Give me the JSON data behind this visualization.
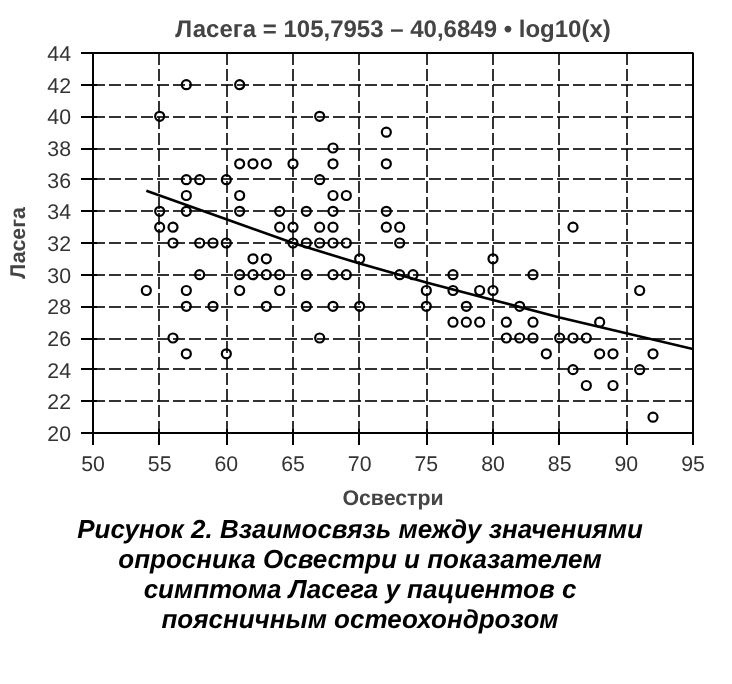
{
  "chart_data": {
    "type": "scatter",
    "title": "Ласега = 105,7953 – 40,6849 • log10(x)",
    "xlabel": "Освестри",
    "ylabel": "Ласега",
    "xlim": [
      50,
      95
    ],
    "xticks": [
      50,
      55,
      60,
      65,
      70,
      75,
      80,
      85,
      90,
      95
    ],
    "ylim": [
      20,
      44
    ],
    "yticks": [
      20,
      22,
      24,
      26,
      28,
      30,
      32,
      34,
      36,
      38,
      40,
      42,
      44
    ],
    "grid": true,
    "marker": "circle",
    "series": [
      {
        "color": "#000000",
        "x": [
          57,
          61,
          55,
          67,
          72,
          68,
          61,
          62,
          63,
          65,
          68,
          72,
          57,
          58,
          60,
          67,
          57,
          61,
          68,
          69,
          55,
          57,
          61,
          64,
          66,
          68,
          72,
          55,
          56,
          64,
          65,
          67,
          68,
          72,
          73,
          86,
          56,
          58,
          59,
          60,
          65,
          66,
          67,
          68,
          69,
          73,
          62,
          63,
          70,
          80,
          58,
          61,
          62,
          63,
          64,
          66,
          68,
          69,
          73,
          74,
          77,
          83,
          54,
          57,
          61,
          64,
          75,
          77,
          79,
          80,
          91,
          57,
          59,
          63,
          66,
          68,
          70,
          75,
          78,
          82,
          77,
          78,
          79,
          81,
          83,
          88,
          56,
          67,
          81,
          82,
          83,
          85,
          86,
          87,
          57,
          60,
          84,
          88,
          89,
          92,
          86,
          91,
          87,
          89,
          92
        ],
        "values": [
          42,
          42,
          40,
          40,
          39,
          38,
          37,
          37,
          37,
          37,
          37,
          37,
          36,
          36,
          36,
          36,
          35,
          35,
          35,
          35,
          34,
          34,
          34,
          34,
          34,
          34,
          34,
          33,
          33,
          33,
          33,
          33,
          33,
          33,
          33,
          33,
          32,
          32,
          32,
          32,
          32,
          32,
          32,
          32,
          32,
          32,
          31,
          31,
          31,
          31,
          30,
          30,
          30,
          30,
          30,
          30,
          30,
          30,
          30,
          30,
          30,
          30,
          29,
          29,
          29,
          29,
          29,
          29,
          29,
          29,
          29,
          28,
          28,
          28,
          28,
          28,
          28,
          28,
          28,
          28,
          27,
          27,
          27,
          27,
          27,
          27,
          26,
          26,
          26,
          26,
          26,
          26,
          26,
          26,
          25,
          25,
          25,
          25,
          25,
          25,
          24,
          24,
          23,
          23,
          21
        ]
      },
      {
        "type": "line",
        "color": "#000000",
        "marker": "none",
        "x": [
          54,
          60,
          65,
          70,
          75,
          80,
          85,
          90,
          95
        ],
        "values": [
          35.3,
          33.5,
          32.0,
          30.7,
          29.5,
          28.4,
          27.3,
          26.3,
          25.3
        ]
      }
    ],
    "annotations": [
      "Рисунок 2. Взаимосвязь между значениями опросника Освестри и показателем симптома Ласега у пациентов с поясничным остеохондрозом"
    ]
  }
}
